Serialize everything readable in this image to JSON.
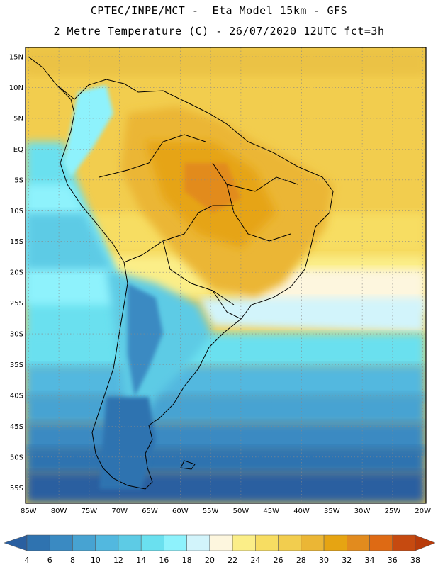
{
  "header": {
    "line1": "CPTEC/INPE/MCT -  Eta Model 15km - GFS",
    "line2": "2 Metre Temperature (C) - 26/07/2020 12UTC fct=3h"
  },
  "map": {
    "lat_labels": [
      "15N",
      "10N",
      "5N",
      "EQ",
      "5S",
      "10S",
      "15S",
      "20S",
      "25S",
      "30S",
      "35S",
      "40S",
      "45S",
      "50S",
      "55S"
    ],
    "lat_values": [
      15,
      10,
      5,
      0,
      -5,
      -10,
      -15,
      -20,
      -25,
      -30,
      -35,
      -40,
      -45,
      -50,
      -55
    ],
    "lon_labels": [
      "85W",
      "80W",
      "75W",
      "70W",
      "65W",
      "60W",
      "55W",
      "50W",
      "45W",
      "40W",
      "35W",
      "30W",
      "25W",
      "20W"
    ],
    "lon_values": [
      -85,
      -80,
      -75,
      -70,
      -65,
      -60,
      -55,
      -50,
      -45,
      -40,
      -35,
      -30,
      -25,
      -20
    ],
    "extent": {
      "lon_min": -85.5,
      "lon_max": -19.5,
      "lat_min": -57.5,
      "lat_max": 16.5
    }
  },
  "colorbar": {
    "labels": [
      "4",
      "6",
      "8",
      "10",
      "12",
      "14",
      "16",
      "18",
      "20",
      "22",
      "24",
      "26",
      "28",
      "30",
      "32",
      "34",
      "36",
      "38"
    ],
    "colors": [
      "#2a5fa0",
      "#2f73b0",
      "#3a8ac2",
      "#47a3d2",
      "#52b8df",
      "#5dcbe5",
      "#6ae0ef",
      "#8ef2fc",
      "#d2f4fb",
      "#fdf6de",
      "#fbee88",
      "#f7dd62",
      "#f2cd4e",
      "#ebb635",
      "#e6a412",
      "#e28b1e",
      "#de6a14",
      "#c64a10",
      "#b83b0a"
    ]
  }
}
